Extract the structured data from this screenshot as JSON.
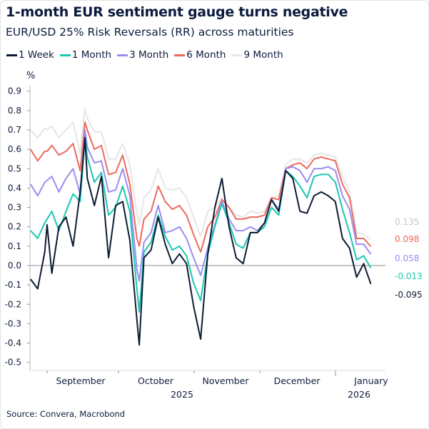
{
  "title": "1-month EUR sentiment gauge turns negative",
  "subtitle": "EUR/USD 25% Risk Reversals (RR) across maturities",
  "source": "Source: Convera, Macrobond",
  "chart_data": {
    "type": "line",
    "title": "1-month EUR sentiment gauge turns negative",
    "subtitle": "EUR/USD 25% Risk Reversals (RR) across maturities",
    "ylabel": "%",
    "ylim": [
      -0.5,
      0.9
    ],
    "yticks": [
      "0.9",
      "0.8",
      "0.7",
      "0.6",
      "0.5",
      "0.4",
      "0.3",
      "0.2",
      "0.1",
      "0.0",
      "-0.1",
      "-0.2",
      "-0.3",
      "-0.4",
      "-0.5"
    ],
    "xtick_labels": [
      "September",
      "October",
      "November",
      "December",
      "January"
    ],
    "year_labels": [
      "2025",
      "2026"
    ],
    "grid": false,
    "zero_line": true,
    "legend_position": "top-left",
    "x": [
      "2025-08-25",
      "2025-08-28",
      "2025-08-31",
      "2025-09-01",
      "2025-09-03",
      "2025-09-06",
      "2025-09-09",
      "2025-09-12",
      "2025-09-15",
      "2025-09-17",
      "2025-09-18",
      "2025-09-21",
      "2025-09-24",
      "2025-09-27",
      "2025-09-30",
      "2025-10-03",
      "2025-10-06",
      "2025-10-09",
      "2025-10-10",
      "2025-10-12",
      "2025-10-15",
      "2025-10-18",
      "2025-10-21",
      "2025-10-24",
      "2025-10-27",
      "2025-10-30",
      "2025-11-02",
      "2025-11-05",
      "2025-11-08",
      "2025-11-11",
      "2025-11-14",
      "2025-11-17",
      "2025-11-20",
      "2025-11-23",
      "2025-11-26",
      "2025-11-29",
      "2025-12-02",
      "2025-12-05",
      "2025-12-08",
      "2025-12-11",
      "2025-12-14",
      "2025-12-17",
      "2025-12-20",
      "2025-12-23",
      "2025-12-26",
      "2025-12-29",
      "2026-01-01",
      "2026-01-04",
      "2026-01-07",
      "2026-01-10",
      "2026-01-13",
      "2026-01-16"
    ],
    "series": [
      {
        "name": "9 Month",
        "color": "#e6e6e6",
        "label_color": "#c4c4c4",
        "last_label": "0.135",
        "values": [
          0.7,
          0.66,
          0.71,
          0.7,
          0.72,
          0.66,
          0.7,
          0.74,
          0.58,
          0.81,
          0.76,
          0.69,
          0.69,
          0.55,
          0.55,
          0.63,
          0.52,
          0.27,
          0.21,
          0.35,
          0.39,
          0.5,
          0.4,
          0.39,
          0.4,
          0.35,
          0.25,
          0.15,
          0.28,
          0.3,
          0.35,
          0.3,
          0.26,
          0.25,
          0.28,
          0.27,
          0.28,
          0.35,
          0.36,
          0.52,
          0.55,
          0.55,
          0.53,
          0.57,
          0.58,
          0.57,
          0.56,
          0.46,
          0.38,
          0.17,
          0.16,
          0.135
        ]
      },
      {
        "name": "6 Month",
        "color": "#ec6b5e",
        "label_color": "#ec6b5e",
        "last_label": "0.098",
        "values": [
          0.6,
          0.54,
          0.59,
          0.59,
          0.62,
          0.57,
          0.59,
          0.63,
          0.49,
          0.74,
          0.7,
          0.6,
          0.62,
          0.47,
          0.48,
          0.57,
          0.42,
          0.14,
          0.1,
          0.24,
          0.28,
          0.41,
          0.33,
          0.29,
          0.31,
          0.26,
          0.16,
          0.07,
          0.2,
          0.25,
          0.34,
          0.3,
          0.24,
          0.24,
          0.25,
          0.25,
          0.26,
          0.35,
          0.34,
          0.5,
          0.52,
          0.53,
          0.5,
          0.55,
          0.56,
          0.55,
          0.54,
          0.42,
          0.35,
          0.14,
          0.14,
          0.098
        ]
      },
      {
        "name": "3 Month",
        "color": "#9b8cf2",
        "label_color": "#9b8cf2",
        "last_label": "0.058",
        "values": [
          0.42,
          0.36,
          0.43,
          0.44,
          0.46,
          0.38,
          0.45,
          0.5,
          0.37,
          0.7,
          0.61,
          0.53,
          0.54,
          0.38,
          0.39,
          0.5,
          0.36,
          -0.02,
          -0.08,
          0.12,
          0.17,
          0.31,
          0.17,
          0.18,
          0.2,
          0.14,
          0.04,
          -0.05,
          0.09,
          0.21,
          0.33,
          0.24,
          0.18,
          0.18,
          0.2,
          0.18,
          0.22,
          0.34,
          0.29,
          0.5,
          0.51,
          0.49,
          0.43,
          0.5,
          0.5,
          0.51,
          0.49,
          0.36,
          0.29,
          0.11,
          0.11,
          0.058
        ]
      },
      {
        "name": "1 Month",
        "color": "#1cc7b0",
        "label_color": "#1cc7b0",
        "last_label": "-0.013",
        "values": [
          0.18,
          0.14,
          0.22,
          0.24,
          0.28,
          0.18,
          0.28,
          0.37,
          0.33,
          0.66,
          0.56,
          0.43,
          0.48,
          0.26,
          0.3,
          0.41,
          0.28,
          -0.12,
          -0.24,
          0.07,
          0.12,
          0.26,
          0.15,
          0.08,
          0.1,
          0.05,
          -0.09,
          -0.18,
          0.06,
          0.2,
          0.32,
          0.22,
          0.11,
          0.09,
          0.17,
          0.17,
          0.2,
          0.3,
          0.26,
          0.49,
          0.46,
          0.41,
          0.35,
          0.46,
          0.47,
          0.47,
          0.43,
          0.29,
          0.17,
          0.03,
          0.05,
          -0.013
        ]
      },
      {
        "name": "1 Week",
        "color": "#0d1b33",
        "label_color": "#0d1b33",
        "last_label": "-0.095",
        "values": [
          -0.07,
          -0.12,
          0.07,
          0.21,
          -0.04,
          0.2,
          0.25,
          0.1,
          0.38,
          0.66,
          0.45,
          0.31,
          0.46,
          0.04,
          0.31,
          0.33,
          0.13,
          -0.28,
          -0.41,
          0.04,
          0.08,
          0.25,
          0.11,
          0.01,
          0.06,
          0.01,
          -0.21,
          -0.38,
          0.06,
          0.3,
          0.45,
          0.2,
          0.04,
          0.01,
          0.17,
          0.17,
          0.22,
          0.34,
          0.28,
          0.49,
          0.45,
          0.28,
          0.27,
          0.36,
          0.38,
          0.36,
          0.33,
          0.14,
          0.09,
          -0.06,
          0.01,
          -0.095
        ]
      }
    ]
  }
}
